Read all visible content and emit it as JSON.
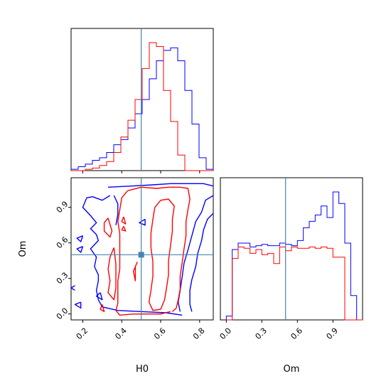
{
  "chart_data": {
    "type": "corner",
    "parameters": [
      "H0",
      "Om"
    ],
    "truth": {
      "H0": 0.5,
      "Om": 0.5
    },
    "colors": {
      "blue": "#0000ff",
      "red": "#ff0000",
      "truth": "#4682b4"
    },
    "axes": {
      "H0": {
        "range": [
          0.14,
          0.87
        ],
        "ticks": [
          0.2,
          0.4,
          0.6,
          0.8
        ],
        "tick_labels": [
          "0.2",
          "0.4",
          "0.6",
          "0.8"
        ],
        "label": "H0"
      },
      "Om": {
        "range": [
          -0.05,
          1.15
        ],
        "ticks": [
          0.0,
          0.3,
          0.6,
          0.9
        ],
        "tick_labels": [
          "0.0",
          "0.3",
          "0.6",
          "0.9"
        ],
        "label": "Om"
      }
    },
    "histograms": {
      "H0": {
        "bins": [
          0.14,
          0.1765,
          0.213,
          0.2495,
          0.286,
          0.3225,
          0.359,
          0.3955,
          0.432,
          0.4685,
          0.505,
          0.5415,
          0.578,
          0.6145,
          0.651,
          0.6875,
          0.724,
          0.7605,
          0.797,
          0.8335,
          0.87
        ],
        "series": [
          {
            "color": "blue",
            "values": [
              0.01,
              0.03,
              0.05,
              0.08,
              0.1,
              0.14,
              0.2,
              0.24,
              0.33,
              0.44,
              0.55,
              0.71,
              0.85,
              0.93,
              0.95,
              0.85,
              0.62,
              0.36,
              0.1,
              0.01
            ]
          },
          {
            "color": "red",
            "values": [
              0.0,
              0.0,
              0.01,
              0.02,
              0.04,
              0.07,
              0.14,
              0.26,
              0.39,
              0.55,
              0.79,
              0.99,
              0.96,
              0.62,
              0.38,
              0.12,
              0.0,
              0.0,
              0.0,
              0.0
            ]
          }
        ]
      },
      "Om": {
        "bins": [
          0.0,
          0.05,
          0.1,
          0.15,
          0.2,
          0.25,
          0.3,
          0.35,
          0.4,
          0.45,
          0.5,
          0.55,
          0.6,
          0.65,
          0.7,
          0.75,
          0.8,
          0.85,
          0.9,
          0.95,
          1.0,
          1.05,
          1.1,
          1.15
        ],
        "series": [
          {
            "color": "blue",
            "values": [
              0.03,
              0.55,
              0.6,
              0.6,
              0.57,
              0.58,
              0.59,
              0.58,
              0.58,
              0.6,
              0.59,
              0.58,
              0.62,
              0.72,
              0.77,
              0.82,
              0.89,
              0.8,
              1.0,
              0.91,
              0.6,
              0.19,
              0.0
            ]
          },
          {
            "color": "red",
            "values": [
              0.0,
              0.48,
              0.57,
              0.56,
              0.52,
              0.55,
              0.51,
              0.52,
              0.44,
              0.57,
              0.54,
              0.57,
              0.56,
              0.56,
              0.57,
              0.56,
              0.57,
              0.56,
              0.49,
              0.49,
              0.0,
              0.0,
              0.0
            ]
          }
        ]
      }
    },
    "contours": [
      {
        "color": "blue",
        "levels": [
          [
            [
              0.33,
              1.07
            ],
            [
              0.45,
              1.08
            ],
            [
              0.56,
              1.09
            ],
            [
              0.65,
              1.1
            ],
            [
              0.74,
              1.1
            ],
            [
              0.82,
              1.1
            ],
            [
              0.87,
              1.08
            ]
          ],
          [
            [
              0.34,
              1.0
            ],
            [
              0.3,
              0.96
            ],
            [
              0.25,
              0.99
            ],
            [
              0.22,
              0.98
            ],
            [
              0.2,
              0.9
            ],
            [
              0.24,
              0.83
            ],
            [
              0.27,
              0.77
            ],
            [
              0.24,
              0.72
            ],
            [
              0.27,
              0.67
            ],
            [
              0.28,
              0.62
            ],
            [
              0.24,
              0.55
            ],
            [
              0.27,
              0.48
            ],
            [
              0.26,
              0.4
            ],
            [
              0.28,
              0.33
            ],
            [
              0.28,
              0.28
            ],
            [
              0.27,
              0.2
            ],
            [
              0.28,
              0.12
            ],
            [
              0.3,
              0.06
            ],
            [
              0.38,
              0.03
            ],
            [
              0.5,
              0.02
            ],
            [
              0.63,
              0.01
            ],
            [
              0.71,
              -0.01
            ]
          ],
          [
            [
              0.87,
              1.0
            ],
            [
              0.83,
              0.96
            ],
            [
              0.81,
              0.86
            ],
            [
              0.78,
              0.78
            ],
            [
              0.76,
              0.66
            ],
            [
              0.74,
              0.54
            ],
            [
              0.72,
              0.43
            ],
            [
              0.71,
              0.31
            ],
            [
              0.7,
              0.2
            ],
            [
              0.69,
              0.1
            ],
            [
              0.7,
              0.02
            ]
          ],
          [
            [
              0.87,
              0.85
            ],
            [
              0.84,
              0.8
            ],
            [
              0.82,
              0.71
            ],
            [
              0.81,
              0.62
            ],
            [
              0.79,
              0.51
            ],
            [
              0.78,
              0.4
            ],
            [
              0.76,
              0.29
            ],
            [
              0.75,
              0.2
            ],
            [
              0.75,
              0.08
            ],
            [
              0.76,
              0.02
            ]
          ],
          [
            [
              0.36,
              1.0
            ],
            [
              0.38,
              0.93
            ],
            [
              0.38,
              0.84
            ],
            [
              0.37,
              0.75
            ]
          ],
          [
            [
              0.2,
              0.66
            ],
            [
              0.17,
              0.64
            ],
            [
              0.19,
              0.61
            ],
            [
              0.2,
              0.66
            ]
          ],
          [
            [
              0.2,
              0.57
            ],
            [
              0.17,
              0.55
            ],
            [
              0.19,
              0.52
            ],
            [
              0.2,
              0.57
            ]
          ],
          [
            [
              0.19,
              0.1
            ],
            [
              0.16,
              0.08
            ],
            [
              0.19,
              0.05
            ],
            [
              0.19,
              0.1
            ]
          ],
          [
            [
              0.16,
              0.24
            ],
            [
              0.14,
              0.22
            ],
            [
              0.16,
              0.2
            ]
          ],
          [
            [
              0.29,
              0.18
            ],
            [
              0.27,
              0.15
            ],
            [
              0.3,
              0.12
            ],
            [
              0.29,
              0.18
            ]
          ],
          [
            [
              0.52,
              0.8
            ],
            [
              0.49,
              0.77
            ],
            [
              0.52,
              0.75
            ],
            [
              0.52,
              0.8
            ]
          ]
        ]
      },
      {
        "color": "red",
        "levels": [
          [
            [
              0.43,
              1.04
            ],
            [
              0.4,
              0.98
            ],
            [
              0.39,
              0.88
            ],
            [
              0.38,
              0.78
            ],
            [
              0.39,
              0.68
            ],
            [
              0.39,
              0.57
            ],
            [
              0.39,
              0.47
            ],
            [
              0.39,
              0.38
            ],
            [
              0.38,
              0.28
            ],
            [
              0.38,
              0.18
            ],
            [
              0.38,
              0.09
            ],
            [
              0.37,
              0.03
            ],
            [
              0.39,
              -0.01
            ],
            [
              0.46,
              0.0
            ],
            [
              0.53,
              0.0
            ],
            [
              0.6,
              0.0
            ],
            [
              0.65,
              0.02
            ]
          ],
          [
            [
              0.43,
              1.04
            ],
            [
              0.5,
              1.07
            ],
            [
              0.58,
              1.06
            ],
            [
              0.64,
              1.07
            ],
            [
              0.7,
              1.07
            ],
            [
              0.74,
              1.06
            ],
            [
              0.75,
              0.97
            ],
            [
              0.74,
              0.88
            ],
            [
              0.73,
              0.78
            ],
            [
              0.73,
              0.66
            ],
            [
              0.72,
              0.55
            ],
            [
              0.71,
              0.43
            ],
            [
              0.7,
              0.32
            ],
            [
              0.7,
              0.21
            ],
            [
              0.69,
              0.12
            ],
            [
              0.68,
              0.05
            ],
            [
              0.66,
              0.02
            ]
          ],
          [
            [
              0.57,
              0.9
            ],
            [
              0.56,
              0.8
            ],
            [
              0.55,
              0.68
            ],
            [
              0.55,
              0.56
            ],
            [
              0.56,
              0.44
            ],
            [
              0.56,
              0.32
            ],
            [
              0.55,
              0.2
            ],
            [
              0.54,
              0.1
            ],
            [
              0.56,
              0.03
            ],
            [
              0.6,
              0.04
            ],
            [
              0.62,
              0.12
            ],
            [
              0.63,
              0.22
            ],
            [
              0.64,
              0.33
            ],
            [
              0.64,
              0.45
            ],
            [
              0.65,
              0.57
            ],
            [
              0.66,
              0.7
            ],
            [
              0.66,
              0.8
            ],
            [
              0.67,
              0.91
            ],
            [
              0.64,
              0.97
            ],
            [
              0.6,
              0.96
            ],
            [
              0.57,
              0.9
            ]
          ],
          [
            [
              0.33,
              0.81
            ],
            [
              0.31,
              0.77
            ],
            [
              0.31,
              0.7
            ],
            [
              0.34,
              0.65
            ],
            [
              0.35,
              0.7
            ],
            [
              0.33,
              0.81
            ]
          ],
          [
            [
              0.36,
              0.56
            ],
            [
              0.34,
              0.48
            ],
            [
              0.33,
              0.38
            ],
            [
              0.34,
              0.28
            ],
            [
              0.33,
              0.18
            ],
            [
              0.36,
              0.12
            ],
            [
              0.37,
              0.22
            ],
            [
              0.37,
              0.32
            ],
            [
              0.37,
              0.42
            ],
            [
              0.36,
              0.56
            ]
          ],
          [
            [
              0.41,
              0.82
            ],
            [
              0.4,
              0.78
            ],
            [
              0.42,
              0.76
            ],
            [
              0.41,
              0.82
            ]
          ],
          [
            [
              0.41,
              0.74
            ],
            [
              0.4,
              0.71
            ],
            [
              0.42,
              0.7
            ],
            [
              0.41,
              0.74
            ]
          ],
          [
            [
              0.3,
              0.08
            ],
            [
              0.29,
              0.04
            ],
            [
              0.31,
              0.02
            ],
            [
              0.3,
              0.08
            ]
          ],
          [
            [
              0.48,
              0.44
            ],
            [
              0.46,
              0.36
            ],
            [
              0.47,
              0.28
            ],
            [
              0.47,
              0.4
            ],
            [
              0.48,
              0.44
            ]
          ]
        ]
      }
    ]
  }
}
